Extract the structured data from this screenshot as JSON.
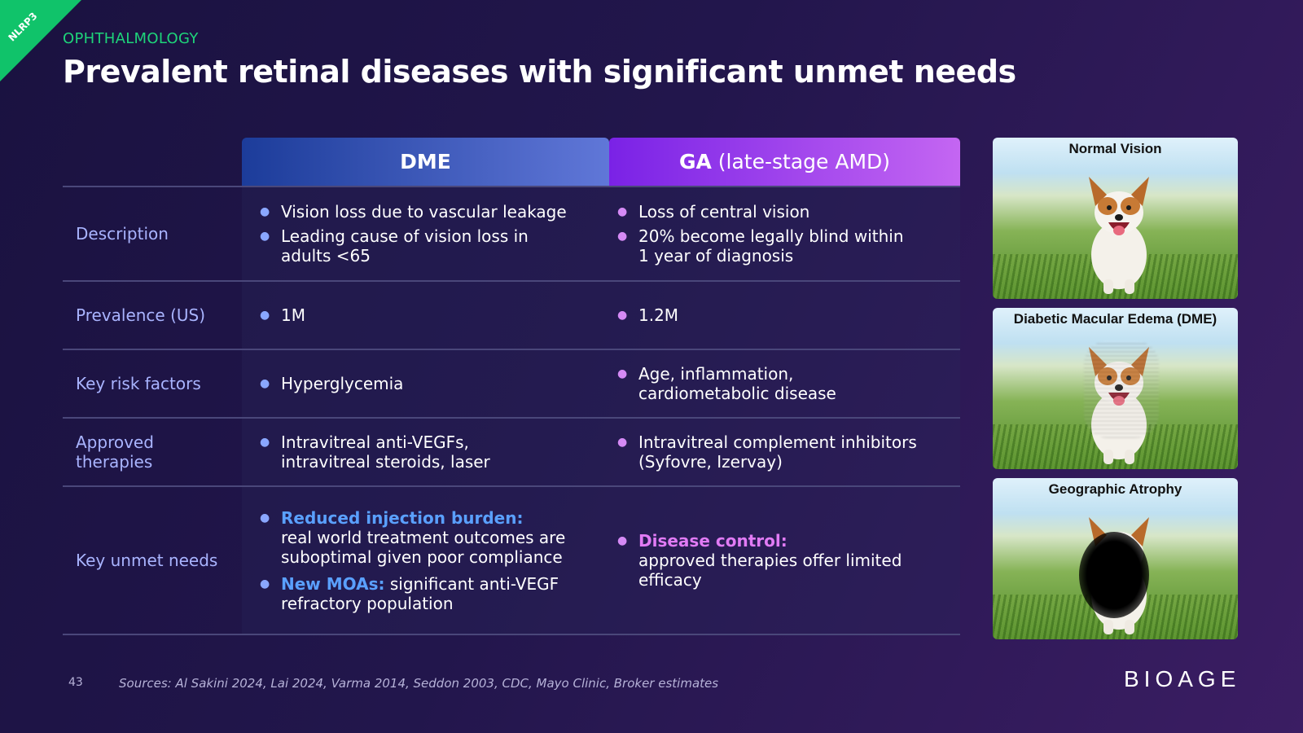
{
  "corner_tag": "NLRP3",
  "eyebrow": "OPHTHALMOLOGY",
  "title": "Prevalent retinal diseases with significant unmet needs",
  "table": {
    "header_dme": "DME",
    "header_ga_bold": "GA",
    "header_ga_rest": " (late-stage AMD)",
    "rows": [
      {
        "label": "Description",
        "dme": [
          "Vision loss due to vascular leakage",
          "Leading cause of vision loss in adults <65"
        ],
        "ga": [
          "Loss of central vision",
          "20% become legally blind within 1 year of diagnosis"
        ]
      },
      {
        "label": "Prevalence (US)",
        "dme": [
          "1M"
        ],
        "ga": [
          "1.2M"
        ]
      },
      {
        "label": "Key risk factors",
        "dme": [
          "Hyperglycemia"
        ],
        "ga": [
          "Age, inflammation, cardiometabolic disease"
        ]
      },
      {
        "label": "Approved therapies",
        "dme": [
          "Intravitreal anti-VEGFs, intravitreal steroids, laser"
        ],
        "ga": [
          "Intravitreal complement inhibitors (Syfovre, Izervay)"
        ]
      },
      {
        "label": "Key unmet needs",
        "dme_highlights": [
          {
            "highlight": "Reduced injection burden:",
            "text": "real world treatment outcomes are suboptimal given poor compliance"
          },
          {
            "highlight": "New MOAs:",
            "text": "significant anti-VEGF refractory population"
          }
        ],
        "ga_highlights": [
          {
            "highlight": "Disease control:",
            "text": "approved therapies offer limited efficacy"
          }
        ]
      }
    ]
  },
  "images": [
    {
      "caption": "Normal Vision"
    },
    {
      "caption": "Diabetic Macular Edema (DME)"
    },
    {
      "caption": "Geographic Atrophy"
    }
  ],
  "footer": {
    "page_number": "43",
    "sources": "Sources: Al Sakini 2024, Lai 2024, Varma 2014, Seddon 2003, CDC, Mayo Clinic, Broker estimates"
  },
  "logo": "BIOAGE",
  "colors": {
    "accent_green": "#1ed47a",
    "label_blue": "#a9b4ff",
    "highlight_blue": "#5aa0ff",
    "highlight_pink": "#e17bf5"
  }
}
